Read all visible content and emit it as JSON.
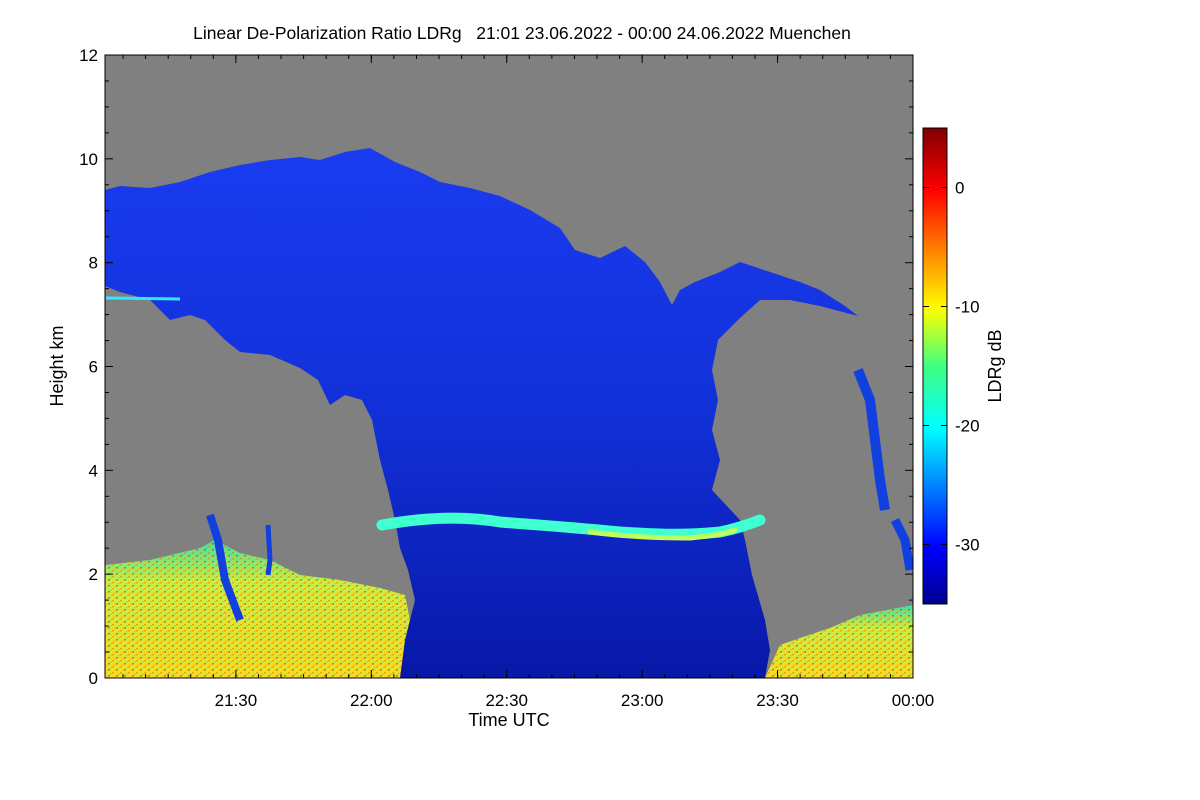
{
  "chart_data": {
    "type": "heatmap",
    "title": "Linear De-Polarization Ratio LDRg   21:01 23.06.2022 - 00:00 24.06.2022 Muenchen",
    "xlabel": "Time UTC",
    "ylabel": "Height km",
    "colorbar_label": "LDRg dB",
    "xlim": [
      21.0167,
      24.0
    ],
    "ylim": [
      0,
      12
    ],
    "x_ticks": [
      {
        "value": 21.5,
        "label": "21:30"
      },
      {
        "value": 22.0,
        "label": "22:00"
      },
      {
        "value": 22.5,
        "label": "22:30"
      },
      {
        "value": 23.0,
        "label": "23:00"
      },
      {
        "value": 23.5,
        "label": "23:30"
      },
      {
        "value": 24.0,
        "label": "00:00"
      }
    ],
    "y_ticks": [
      0,
      2,
      4,
      6,
      8,
      10,
      12
    ],
    "colorbar": {
      "min": -35,
      "max": 5,
      "ticks": [
        0,
        -10,
        -20,
        -30
      ],
      "colormap": "jet"
    },
    "background_color": "#808080",
    "features": {
      "cirrus_top": [
        [
          21.02,
          9.1
        ],
        [
          21.2,
          9.2
        ],
        [
          21.5,
          9.6
        ],
        [
          21.7,
          9.9
        ],
        [
          22.0,
          10.1
        ],
        [
          22.2,
          9.8
        ],
        [
          22.4,
          9.4
        ],
        [
          22.6,
          8.8
        ],
        [
          22.8,
          8.1
        ],
        [
          22.95,
          7.9
        ],
        [
          23.05,
          7.5
        ],
        [
          23.15,
          7.6
        ],
        [
          23.3,
          7.9
        ],
        [
          23.5,
          7.9
        ],
        [
          23.6,
          7.2
        ],
        [
          23.65,
          7.0
        ]
      ],
      "cirrus_base": [
        [
          21.02,
          7.9
        ],
        [
          21.2,
          7.6
        ],
        [
          21.4,
          7.1
        ],
        [
          21.6,
          6.7
        ],
        [
          21.8,
          6.1
        ],
        [
          21.95,
          5.5
        ],
        [
          22.05,
          4.6
        ],
        [
          22.1,
          3.6
        ],
        [
          22.15,
          2.0
        ],
        [
          22.2,
          0.0
        ],
        [
          23.4,
          0.0
        ],
        [
          23.35,
          2.0
        ],
        [
          23.2,
          3.2
        ],
        [
          23.15,
          4.5
        ],
        [
          23.1,
          6.0
        ],
        [
          23.2,
          6.8
        ],
        [
          23.4,
          7.2
        ],
        [
          23.65,
          7.0
        ]
      ],
      "melting_layer": {
        "x_start": 22.05,
        "x_end": 23.45,
        "height_km": 2.85,
        "ldr_db": -18
      },
      "boundary_layer_aerosol": [
        {
          "x_start": 21.02,
          "x_end": 22.15,
          "top_km": 2.4,
          "ldr_db": -10
        },
        {
          "x_start": 23.45,
          "x_end": 24.0,
          "top_km": 1.2,
          "ldr_db": -10
        }
      ]
    }
  }
}
